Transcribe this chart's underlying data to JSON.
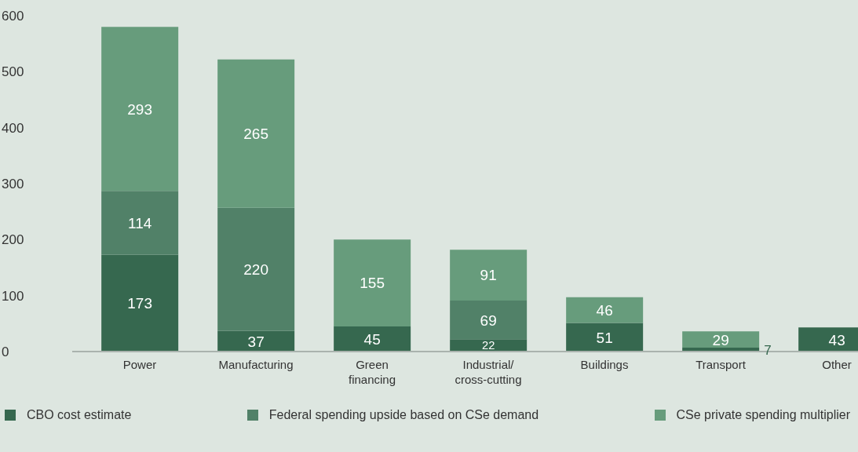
{
  "chart_data": {
    "type": "bar",
    "stacked": true,
    "categories": [
      "Power",
      "Manufacturing",
      "Green\nfinancing",
      "Industrial/\ncross-cutting",
      "Buildings",
      "Transport",
      "Other"
    ],
    "series": [
      {
        "name": "CBO cost estimate",
        "color": "#36684f",
        "values": [
          173,
          37,
          45,
          22,
          51,
          7,
          43
        ],
        "value_labels": [
          "173",
          "37",
          "45",
          "22",
          "51",
          "7",
          "43"
        ]
      },
      {
        "name": "Federal spending upside based on CSe demand",
        "color": "#518168",
        "values": [
          114,
          220,
          null,
          69,
          null,
          null,
          null
        ],
        "value_labels": [
          "114",
          "220",
          null,
          "69",
          null,
          null,
          null
        ]
      },
      {
        "name": "CSe private spending multiplier",
        "color": "#679c7c",
        "values": [
          293,
          265,
          155,
          91,
          46,
          29,
          null
        ],
        "value_labels": [
          "293",
          "265",
          "155",
          "91",
          "46",
          "29",
          null
        ]
      }
    ],
    "ylim": [
      0,
      600
    ],
    "yticks": [
      0,
      100,
      200,
      300,
      400,
      500,
      600
    ],
    "grid": false,
    "legend": "bottom"
  }
}
